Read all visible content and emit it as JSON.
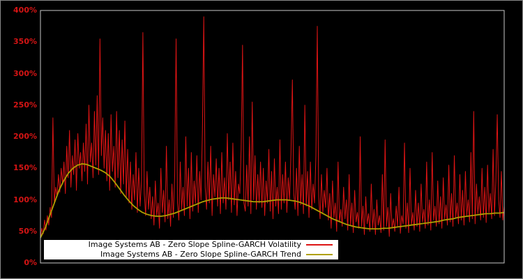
{
  "legend": {
    "background": "#ffffff",
    "text_color": "#000000"
  },
  "chart_data": {
    "type": "line",
    "title": "",
    "xlabel": "",
    "ylabel": "",
    "ylim": [
      0,
      400
    ],
    "yticks": [
      "0%",
      "50%",
      "100%",
      "150%",
      "200%",
      "250%",
      "300%",
      "350%",
      "400%"
    ],
    "ytick_values": [
      0,
      50,
      100,
      150,
      200,
      250,
      300,
      350,
      400
    ],
    "xticks": [],
    "grid": false,
    "legend_position": "bottom-left-inside",
    "background": "#000000",
    "axis_label_color": "#d41414",
    "plot_border_color": "#c8c8c8",
    "series": [
      {
        "name": "Image Systems AB - Zero Slope Spline-GARCH Volatility",
        "color": "#dd1414",
        "style": "spiky",
        "unit": "%",
        "values_pct": [
          40,
          55,
          46,
          68,
          52,
          75,
          60,
          88,
          72,
          230,
          95,
          120,
          105,
          140,
          112,
          150,
          125,
          160,
          110,
          185,
          135,
          210,
          120,
          170,
          140,
          195,
          115,
          205,
          150,
          175,
          130,
          190,
          145,
          220,
          125,
          250,
          160,
          190,
          135,
          240,
          155,
          265,
          140,
          355,
          170,
          230,
          150,
          210,
          130,
          205,
          115,
          235,
          145,
          185,
          120,
          240,
          135,
          210,
          110,
          195,
          125,
          225,
          105,
          180,
          95,
          160,
          85,
          140,
          100,
          175,
          80,
          150,
          90,
          130,
          365,
          110,
          75,
          145,
          85,
          120,
          70,
          105,
          60,
          130,
          75,
          95,
          55,
          150,
          80,
          115,
          65,
          185,
          70,
          100,
          58,
          125,
          72,
          140,
          355,
          95,
          68,
          160,
          85,
          120,
          75,
          200,
          90,
          150,
          70,
          175,
          82,
          130,
          95,
          170,
          80,
          145,
          100,
          210,
          390,
          120,
          85,
          160,
          95,
          185,
          75,
          140,
          105,
          165,
          90,
          150,
          78,
          175,
          95,
          135,
          85,
          205,
          100,
          160,
          80,
          190,
          92,
          145,
          75,
          125,
          110,
          180,
          345,
          95,
          82,
          155,
          90,
          200,
          78,
          255,
          100,
          170,
          85,
          140,
          95,
          160,
          88,
          150,
          75,
          130,
          95,
          180,
          82,
          145,
          70,
          165,
          90,
          120,
          78,
          195,
          85,
          140,
          95,
          160,
          80,
          135,
          100,
          175,
          290,
          110,
          85,
          150,
          75,
          185,
          92,
          140,
          78,
          250,
          90,
          145,
          72,
          160,
          85,
          125,
          95,
          170,
          375,
          105,
          70,
          140,
          80,
          115,
          88,
          150,
          68,
          110,
          55,
          130,
          72,
          95,
          50,
          160,
          65,
          85,
          58,
          120,
          70,
          100,
          52,
          140,
          60,
          95,
          48,
          115,
          65,
          80,
          55,
          200,
          58,
          90,
          45,
          105,
          62,
          78,
          50,
          125,
          55,
          85,
          45,
          100,
          60,
          75,
          48,
          140,
          52,
          195,
          58,
          88,
          42,
          110,
          55,
          70,
          50,
          90,
          58,
          120,
          47,
          75,
          62,
          190,
          55,
          95,
          48,
          150,
          60,
          80,
          52,
          115,
          58,
          95,
          50,
          125,
          65,
          85,
          55,
          160,
          60,
          100,
          52,
          175,
          68,
          90,
          58,
          130,
          62,
          105,
          55,
          135,
          70,
          92,
          60,
          155,
          65,
          110,
          58,
          170,
          72,
          95,
          62,
          140,
          68,
          115,
          60,
          145,
          75,
          100,
          65,
          175,
          70,
          240,
          62,
          125,
          78,
          105,
          68,
          150,
          72,
          120,
          64,
          155,
          80,
          110,
          70,
          180,
          75,
          130,
          235,
          100,
          72,
          145,
          68,
          90
        ]
      },
      {
        "name": "Image Systems AB - Zero Slope Spline-GARCH Trend",
        "color": "#b0a000",
        "style": "smooth",
        "unit": "%",
        "values_pct": [
          40,
          55,
          75,
          95,
          115,
          130,
          142,
          150,
          155,
          157,
          156,
          153,
          150,
          147,
          143,
          137,
          128,
          118,
          108,
          99,
          91,
          85,
          80,
          77,
          75,
          74,
          74,
          75,
          77,
          79,
          82,
          85,
          88,
          91,
          94,
          97,
          99,
          101,
          102,
          103,
          103,
          102,
          101,
          100,
          99,
          98,
          97,
          97,
          97,
          98,
          99,
          100,
          100,
          100,
          99,
          98,
          96,
          93,
          90,
          86,
          82,
          78,
          74,
          70,
          67,
          64,
          61,
          59,
          57,
          56,
          55,
          54,
          54,
          54,
          55,
          55,
          56,
          57,
          58,
          59,
          60,
          61,
          62,
          63,
          64,
          65,
          66,
          68,
          69,
          70,
          72,
          73,
          74,
          75,
          76,
          77,
          78,
          78,
          79,
          79,
          80
        ]
      }
    ]
  }
}
